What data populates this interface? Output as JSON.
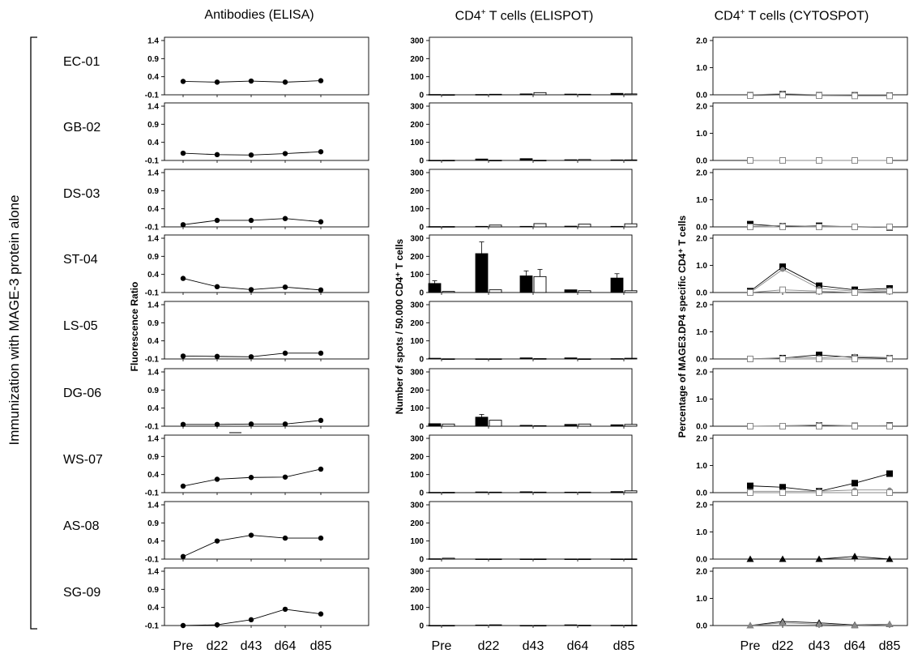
{
  "headers": {
    "elisa": "Antibodies (ELISA)",
    "elispot_pre": "CD4",
    "elispot_sup": "+",
    "elispot_post": " T cells (ELISPOT)",
    "cytospot_pre": "CD4",
    "cytospot_sup": "+",
    "cytospot_post": " T cells (CYTOSPOT)"
  },
  "cohort_label": "Immunization with MAGE-3 protein alone",
  "ylabels": {
    "elisa": "Fluorescence Ratio",
    "elispot": "Number of spots / 50.000 CD4⁺ T cells",
    "cytospot": "Percentage of MAGE3.DP4 specific CD4⁺ T cells"
  },
  "timepoints": [
    "Pre",
    "d22",
    "d43",
    "d64",
    "d85"
  ],
  "patients": [
    "EC-01",
    "GB-02",
    "DS-03",
    "ST-04",
    "LS-05",
    "DG-06",
    "WS-07",
    "AS-08",
    "SG-09"
  ],
  "colors": {
    "axis": "#000000",
    "black": "#000000",
    "white": "#ffffff",
    "gray": "#888888"
  },
  "chart_data": [
    {
      "type": "line",
      "panel": "Antibodies (ELISA)",
      "ylabel": "Fluorescence Ratio",
      "ylim": [
        -0.1,
        1.4
      ],
      "yticks": [
        "1.4",
        "0.9",
        "0.4",
        "-0.1"
      ],
      "x": [
        "Pre",
        "d22",
        "d43",
        "d64",
        "d85"
      ],
      "series": [
        {
          "values": [
            0.27,
            0.25,
            0.28,
            0.25,
            0.29
          ]
        },
        {
          "values": [
            0.1,
            0.06,
            0.05,
            0.09,
            0.14
          ]
        },
        {
          "values": [
            -0.04,
            0.08,
            0.08,
            0.13,
            0.04
          ]
        },
        {
          "values": [
            0.29,
            0.06,
            -0.02,
            0.05,
            -0.03
          ]
        },
        {
          "values": [
            -0.02,
            -0.03,
            -0.04,
            0.06,
            0.06
          ]
        },
        {
          "values": [
            -0.05,
            -0.05,
            -0.04,
            -0.04,
            0.06
          ]
        },
        {
          "values": [
            0.08,
            0.27,
            0.32,
            0.33,
            0.55
          ]
        },
        {
          "values": [
            -0.03,
            0.4,
            0.56,
            0.48,
            0.48
          ]
        },
        {
          "values": [
            -0.1,
            -0.08,
            0.06,
            0.35,
            0.22
          ]
        }
      ]
    },
    {
      "type": "bar",
      "panel": "CD4+ T cells (ELISPOT)",
      "ylabel": "Number of spots / 50.000 CD4+ T cells",
      "ylim": [
        0,
        300
      ],
      "yticks": [
        "300",
        "200",
        "100",
        "0"
      ],
      "categories": [
        "Pre",
        "d22",
        "d43",
        "d64",
        "d85"
      ],
      "series": [
        {
          "values": [
            [
              2,
              2,
              5,
              4,
              8
            ],
            [
              1,
              8,
              10,
              4,
              3
            ],
            [
              2,
              3,
              3,
              4,
              3
            ],
            [
              50,
              215,
              92,
              15,
              80
            ],
            [
              4,
              1,
              6,
              6,
              2
            ],
            [
              14,
              50,
              5,
              10,
              8
            ],
            [
              2,
              4,
              5,
              3,
              6
            ],
            [
              2,
              1,
              1,
              1,
              1
            ],
            [
              1,
              3,
              1,
              4,
              2
            ]
          ]
        },
        {
          "values": [
            [
              1,
              3,
              12,
              3,
              5
            ],
            [
              1,
              1,
              1,
              5,
              3
            ],
            [
              2,
              10,
              18,
              15,
              17
            ],
            [
              6,
              15,
              88,
              10,
              10
            ],
            [
              1,
              1,
              2,
              1,
              4
            ],
            [
              12,
              33,
              3,
              12,
              10
            ],
            [
              2,
              3,
              3,
              3,
              10
            ],
            [
              5,
              1,
              1,
              1,
              1
            ],
            [
              1,
              4,
              1,
              2,
              2
            ]
          ]
        }
      ]
    },
    {
      "type": "line",
      "panel": "CD4+ T cells (CYTOSPOT)",
      "ylabel": "Percentage of MAGE3.DP4 specific CD4+ T cells",
      "ylim": [
        0,
        2.0
      ],
      "yticks": [
        "2.0",
        "1.0",
        "0.0"
      ],
      "x": [
        "Pre",
        "d22",
        "d43",
        "d64",
        "d85"
      ],
      "series": [
        {
          "values": [
            [
              -0.02,
              0.02,
              -0.02,
              -0.02,
              -0.03
            ],
            [
              0.0,
              0.04,
              0.0,
              0.0,
              0.0
            ],
            [
              -0.03,
              -0.01,
              -0.03,
              -0.04,
              -0.04
            ]
          ]
        },
        {
          "values": [
            [
              0.0,
              0.0,
              0.0,
              0.0,
              0.0
            ],
            [
              0.0,
              0.0,
              0.0,
              0.0,
              0.0
            ],
            [
              0.0,
              0.0,
              0.0,
              0.0,
              0.0
            ]
          ]
        },
        {
          "values": [
            [
              0.1,
              0.02,
              0.04,
              0.0,
              -0.02
            ],
            [
              0.02,
              0.05,
              0.02,
              0.02,
              -0.02
            ],
            [
              0.0,
              0.0,
              0.0,
              0.0,
              0.0
            ]
          ]
        },
        {
          "values": [
            [
              0.05,
              0.95,
              0.25,
              0.1,
              0.15
            ],
            [
              0.0,
              0.85,
              0.15,
              0.05,
              0.1
            ],
            [
              0.0,
              0.1,
              0.05,
              0.0,
              0.05
            ]
          ]
        },
        {
          "values": [
            [
              0.0,
              0.03,
              0.15,
              0.05,
              0.02
            ],
            [
              0.0,
              0.05,
              0.05,
              0.1,
              0.05
            ],
            [
              0.0,
              0.0,
              0.0,
              0.0,
              0.0
            ]
          ]
        },
        {
          "values": [
            [
              0.0,
              0.0,
              0.02,
              0.01,
              0.02
            ],
            [
              0.0,
              0.02,
              0.05,
              0.02,
              0.02
            ],
            [
              0.0,
              0.0,
              0.0,
              0.0,
              0.0
            ]
          ]
        },
        {
          "values": [
            [
              0.25,
              0.2,
              0.05,
              0.35,
              0.7
            ],
            [
              0.05,
              0.05,
              0.05,
              0.1,
              0.1
            ],
            [
              0.0,
              0.0,
              0.0,
              0.0,
              0.0
            ]
          ]
        },
        {
          "values": [
            [
              0.0,
              0.0,
              0.0,
              0.1,
              0.0
            ]
          ]
        },
        {
          "values": [
            [
              0.0,
              0.15,
              0.1,
              0.02,
              0.05
            ],
            [
              0.0,
              0.1,
              0.05,
              0.0,
              0.05
            ]
          ]
        }
      ]
    }
  ]
}
